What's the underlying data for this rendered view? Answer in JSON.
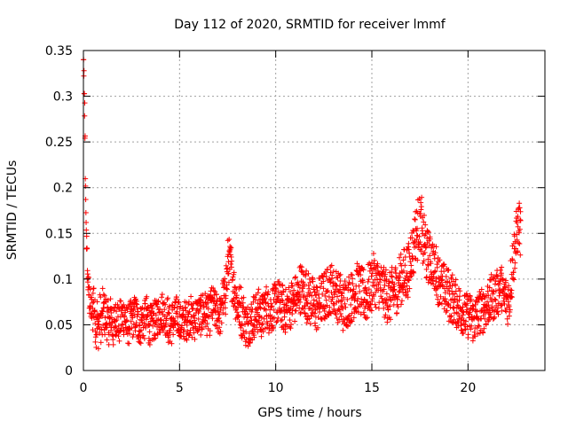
{
  "chart_data": {
    "type": "scatter",
    "title": "Day 112 of 2020, SRMTID for receiver lmmf",
    "xlabel": "GPS time / hours",
    "ylabel": "SRMTID / TECUs",
    "xlim": [
      0,
      24
    ],
    "ylim": [
      0,
      0.35
    ],
    "xticks": [
      0,
      5,
      10,
      15,
      20
    ],
    "xtick_labels": [
      "0",
      "5",
      "10",
      "15",
      "20"
    ],
    "yticks": [
      0,
      0.05,
      0.1,
      0.15,
      0.2,
      0.25,
      0.3,
      0.35
    ],
    "ytick_labels": [
      "0",
      "0.05",
      "0.1",
      "0.15",
      "0.2",
      "0.25",
      "0.3",
      "0.35"
    ],
    "grid": true,
    "marker": "+",
    "series": [
      {
        "name": "SRMTID",
        "color": "#ff0000",
        "x": [
          0.0,
          0.02,
          0.04,
          0.06,
          0.08,
          0.1,
          0.12,
          0.14,
          0.16,
          0.18,
          0.2,
          0.22,
          0.24,
          0.26,
          0.28,
          0.3,
          0.32,
          0.35,
          0.4,
          0.45,
          0.5,
          0.55,
          0.6,
          0.65,
          0.7,
          0.75,
          0.8,
          0.85,
          0.9,
          0.95,
          1.0,
          1.1,
          1.2,
          1.3,
          1.4,
          1.5,
          1.6,
          1.7,
          1.8,
          1.9,
          2.0,
          2.2,
          2.4,
          2.6,
          2.8,
          3.0,
          3.2,
          3.4,
          3.6,
          3.8,
          4.0,
          4.2,
          4.4,
          4.6,
          4.8,
          5.0,
          5.2,
          5.4,
          5.6,
          5.8,
          6.0,
          6.2,
          6.4,
          6.6,
          6.8,
          7.0,
          7.2,
          7.4,
          7.5,
          7.6,
          7.7,
          7.8,
          7.9,
          8.0,
          8.2,
          8.4,
          8.6,
          8.8,
          9.0,
          9.2,
          9.4,
          9.6,
          9.8,
          10.0,
          10.2,
          10.4,
          10.6,
          10.8,
          11.0,
          11.2,
          11.4,
          11.6,
          11.8,
          12.0,
          12.2,
          12.4,
          12.6,
          12.8,
          13.0,
          13.2,
          13.4,
          13.6,
          13.8,
          14.0,
          14.2,
          14.4,
          14.6,
          14.8,
          15.0,
          15.2,
          15.4,
          15.6,
          15.8,
          16.0,
          16.2,
          16.4,
          16.6,
          16.8,
          17.0,
          17.2,
          17.4,
          17.6,
          17.8,
          18.0,
          18.2,
          18.4,
          18.6,
          18.8,
          19.0,
          19.2,
          19.4,
          19.6,
          19.8,
          20.0,
          20.2,
          20.4,
          20.6,
          20.8,
          21.0,
          21.2,
          21.4,
          21.6,
          21.8,
          22.0,
          22.1,
          22.2,
          22.3,
          22.4,
          22.5,
          22.6,
          22.7
        ],
        "y": [
          0.34,
          0.32,
          0.3,
          0.285,
          0.25,
          0.205,
          0.18,
          0.16,
          0.14,
          0.125,
          0.11,
          0.1,
          0.095,
          0.09,
          0.085,
          0.08,
          0.075,
          0.07,
          0.065,
          0.06,
          0.08,
          0.07,
          0.055,
          0.05,
          0.06,
          0.045,
          0.05,
          0.06,
          0.055,
          0.05,
          0.065,
          0.06,
          0.055,
          0.05,
          0.06,
          0.045,
          0.055,
          0.06,
          0.05,
          0.055,
          0.06,
          0.05,
          0.055,
          0.06,
          0.05,
          0.055,
          0.06,
          0.05,
          0.055,
          0.06,
          0.065,
          0.06,
          0.05,
          0.055,
          0.06,
          0.05,
          0.055,
          0.06,
          0.055,
          0.06,
          0.06,
          0.065,
          0.06,
          0.07,
          0.065,
          0.06,
          0.08,
          0.1,
          0.12,
          0.115,
          0.1,
          0.09,
          0.08,
          0.07,
          0.06,
          0.05,
          0.055,
          0.06,
          0.065,
          0.06,
          0.07,
          0.065,
          0.07,
          0.075,
          0.07,
          0.065,
          0.07,
          0.075,
          0.08,
          0.09,
          0.085,
          0.08,
          0.075,
          0.07,
          0.075,
          0.08,
          0.085,
          0.09,
          0.085,
          0.08,
          0.07,
          0.075,
          0.08,
          0.085,
          0.09,
          0.085,
          0.08,
          0.09,
          0.1,
          0.095,
          0.09,
          0.085,
          0.08,
          0.085,
          0.09,
          0.1,
          0.105,
          0.11,
          0.13,
          0.15,
          0.16,
          0.14,
          0.125,
          0.12,
          0.11,
          0.1,
          0.09,
          0.085,
          0.08,
          0.075,
          0.07,
          0.065,
          0.06,
          0.06,
          0.055,
          0.06,
          0.065,
          0.07,
          0.075,
          0.08,
          0.085,
          0.09,
          0.08,
          0.075,
          0.08,
          0.1,
          0.12,
          0.135,
          0.15,
          0.16,
          0.15
        ],
        "spread": [
          0.0,
          0.008,
          0.008,
          0.01,
          0.01,
          0.01,
          0.012,
          0.012,
          0.012,
          0.012,
          0.012,
          0.012,
          0.015,
          0.015,
          0.015,
          0.018,
          0.018,
          0.02,
          0.02,
          0.02,
          0.025,
          0.025,
          0.025,
          0.025,
          0.025,
          0.022,
          0.022,
          0.025,
          0.025,
          0.025,
          0.025,
          0.025,
          0.022,
          0.022,
          0.022,
          0.022,
          0.022,
          0.022,
          0.022,
          0.022,
          0.022,
          0.022,
          0.022,
          0.022,
          0.022,
          0.022,
          0.022,
          0.022,
          0.022,
          0.022,
          0.022,
          0.022,
          0.022,
          0.022,
          0.022,
          0.022,
          0.022,
          0.022,
          0.022,
          0.022,
          0.022,
          0.022,
          0.022,
          0.022,
          0.022,
          0.022,
          0.022,
          0.025,
          0.025,
          0.025,
          0.025,
          0.025,
          0.025,
          0.025,
          0.025,
          0.025,
          0.025,
          0.025,
          0.025,
          0.025,
          0.025,
          0.025,
          0.025,
          0.025,
          0.025,
          0.025,
          0.025,
          0.025,
          0.025,
          0.028,
          0.028,
          0.028,
          0.028,
          0.028,
          0.028,
          0.028,
          0.028,
          0.028,
          0.028,
          0.028,
          0.028,
          0.028,
          0.028,
          0.028,
          0.028,
          0.028,
          0.028,
          0.028,
          0.028,
          0.028,
          0.028,
          0.028,
          0.028,
          0.028,
          0.028,
          0.028,
          0.03,
          0.03,
          0.03,
          0.03,
          0.03,
          0.03,
          0.03,
          0.028,
          0.028,
          0.028,
          0.028,
          0.028,
          0.028,
          0.025,
          0.025,
          0.025,
          0.025,
          0.025,
          0.025,
          0.025,
          0.025,
          0.025,
          0.025,
          0.025,
          0.025,
          0.025,
          0.025,
          0.025,
          0.025,
          0.025,
          0.025,
          0.025,
          0.025,
          0.025,
          0.025
        ]
      }
    ]
  }
}
